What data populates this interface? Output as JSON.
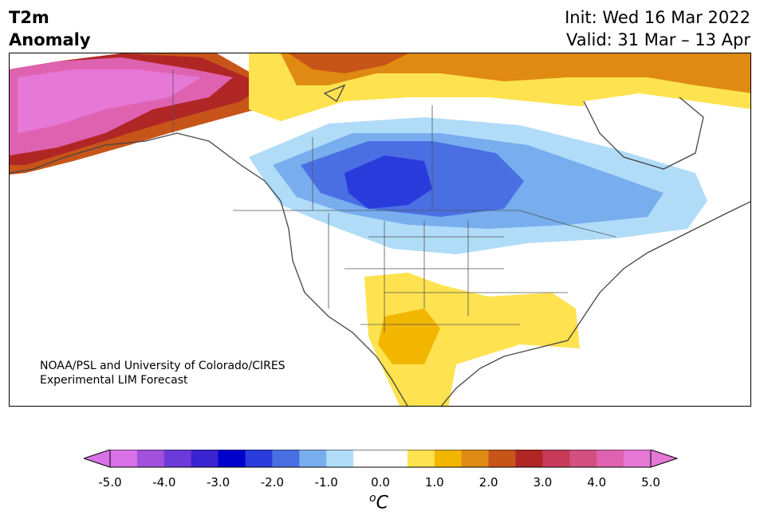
{
  "title": {
    "line1": "T2m",
    "line2": "Anomaly"
  },
  "dates": {
    "init": "Init: Wed 16 Mar 2022",
    "valid": "Valid: 31 Mar – 13 Apr"
  },
  "credit": {
    "line1": "NOAA/PSL and University of Colorado/CIRES",
    "line2": "Experimental LIM Forecast"
  },
  "colorbar": {
    "colors": [
      "#d872e6",
      "#a150db",
      "#6b3ad8",
      "#3a23d0",
      "#0000cc",
      "#2a3bdb",
      "#4a6fe3",
      "#78aeee",
      "#b0dcf8",
      "#ffffff",
      "#ffffff",
      "#ffe24f",
      "#f2b600",
      "#df8a12",
      "#c75419",
      "#b02625",
      "#c73a5a",
      "#d2507f",
      "#df62b0",
      "#e678d6"
    ],
    "extend_low_color": "#d872e6",
    "extend_high_color": "#e678d6",
    "tick_labels": [
      "-5.0",
      "-4.0",
      "-3.0",
      "-2.0",
      "-1.0",
      "0.0",
      "1.0",
      "2.0",
      "3.0",
      "4.0",
      "5.0"
    ],
    "unit_base": "C",
    "unit_sup": "o"
  }
}
